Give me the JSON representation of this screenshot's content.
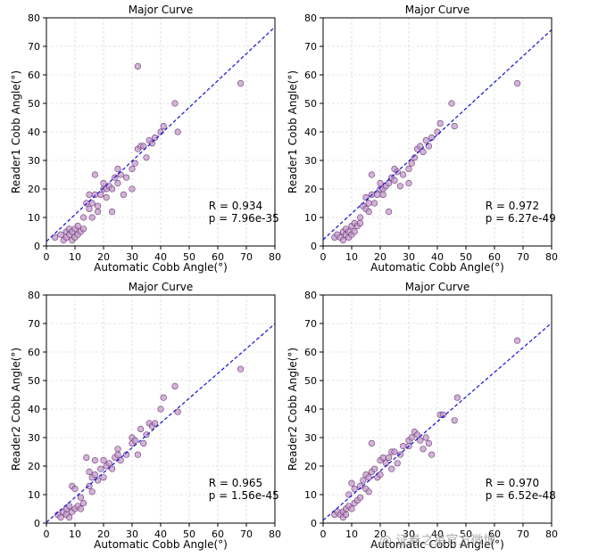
{
  "chart_data": [
    {
      "type": "scatter",
      "title": "Major Curve",
      "xlabel": "Automatic Cobb Angle(°)",
      "ylabel": "Reader1 Cobb Angle(°)",
      "xlim": [
        0,
        80
      ],
      "ylim": [
        0,
        80
      ],
      "xticks": [
        "0",
        "10",
        "20",
        "30",
        "40",
        "50",
        "60",
        "70",
        "80"
      ],
      "yticks": [
        "0",
        "10",
        "20",
        "30",
        "40",
        "50",
        "60",
        "70",
        "80"
      ],
      "grid": true,
      "stat_r": "R = 0.934",
      "stat_p": "p = 7.96e-35",
      "fit": {
        "slope": 0.94,
        "intercept": 1.6
      },
      "points": [
        [
          3,
          3
        ],
        [
          5,
          4
        ],
        [
          6,
          2
        ],
        [
          7,
          5
        ],
        [
          7,
          3
        ],
        [
          8,
          4
        ],
        [
          8,
          6
        ],
        [
          9,
          2
        ],
        [
          9,
          5
        ],
        [
          10,
          3
        ],
        [
          10,
          6
        ],
        [
          11,
          4
        ],
        [
          11,
          7
        ],
        [
          12,
          5
        ],
        [
          13,
          10
        ],
        [
          13,
          6
        ],
        [
          14,
          15
        ],
        [
          15,
          18
        ],
        [
          15,
          13
        ],
        [
          16,
          15
        ],
        [
          16,
          10
        ],
        [
          17,
          18
        ],
        [
          17,
          25
        ],
        [
          18,
          14
        ],
        [
          18,
          12
        ],
        [
          19,
          18
        ],
        [
          20,
          20
        ],
        [
          20,
          22
        ],
        [
          21,
          20
        ],
        [
          21,
          17
        ],
        [
          22,
          21
        ],
        [
          23,
          20
        ],
        [
          23,
          12
        ],
        [
          24,
          24
        ],
        [
          25,
          22
        ],
        [
          25,
          27
        ],
        [
          26,
          25
        ],
        [
          27,
          18
        ],
        [
          28,
          24
        ],
        [
          30,
          20
        ],
        [
          30,
          27
        ],
        [
          31,
          29
        ],
        [
          32,
          34
        ],
        [
          32,
          63
        ],
        [
          33,
          35
        ],
        [
          34,
          35
        ],
        [
          35,
          31
        ],
        [
          36,
          37
        ],
        [
          37,
          36
        ],
        [
          38,
          38
        ],
        [
          40,
          40
        ],
        [
          41,
          42
        ],
        [
          45,
          50
        ],
        [
          46,
          40
        ],
        [
          68,
          57
        ]
      ]
    },
    {
      "type": "scatter",
      "title": "Major Curve",
      "xlabel": "Automatic Cobb Angle(°)",
      "ylabel": "Reader1 Cobb Angle(°)",
      "xlim": [
        0,
        80
      ],
      "ylim": [
        0,
        80
      ],
      "xticks": [
        "0",
        "10",
        "20",
        "30",
        "40",
        "50",
        "60",
        "70",
        "80"
      ],
      "yticks": [
        "0",
        "10",
        "20",
        "30",
        "40",
        "50",
        "60",
        "70",
        "80"
      ],
      "grid": true,
      "stat_r": "R = 0.972",
      "stat_p": "p = 6.27e-49",
      "fit": {
        "slope": 0.92,
        "intercept": 2.2
      },
      "points": [
        [
          4,
          3
        ],
        [
          5,
          4
        ],
        [
          6,
          3
        ],
        [
          7,
          5
        ],
        [
          7,
          2
        ],
        [
          8,
          4
        ],
        [
          8,
          6
        ],
        [
          9,
          3
        ],
        [
          9,
          5
        ],
        [
          10,
          4
        ],
        [
          10,
          7
        ],
        [
          11,
          5
        ],
        [
          11,
          8
        ],
        [
          12,
          7
        ],
        [
          13,
          10
        ],
        [
          13,
          8
        ],
        [
          14,
          14
        ],
        [
          15,
          17
        ],
        [
          15,
          13
        ],
        [
          16,
          15
        ],
        [
          16,
          12
        ],
        [
          17,
          18
        ],
        [
          17,
          25
        ],
        [
          18,
          15
        ],
        [
          19,
          18
        ],
        [
          20,
          20
        ],
        [
          20,
          22
        ],
        [
          21,
          20
        ],
        [
          21,
          18
        ],
        [
          22,
          21
        ],
        [
          23,
          22
        ],
        [
          23,
          12
        ],
        [
          24,
          24
        ],
        [
          25,
          23
        ],
        [
          25,
          27
        ],
        [
          26,
          26
        ],
        [
          27,
          21
        ],
        [
          28,
          25
        ],
        [
          30,
          22
        ],
        [
          30,
          27
        ],
        [
          31,
          29
        ],
        [
          32,
          31
        ],
        [
          33,
          34
        ],
        [
          34,
          35
        ],
        [
          35,
          33
        ],
        [
          36,
          37
        ],
        [
          37,
          35
        ],
        [
          38,
          38
        ],
        [
          40,
          40
        ],
        [
          41,
          43
        ],
        [
          45,
          50
        ],
        [
          46,
          42
        ],
        [
          68,
          57
        ]
      ]
    },
    {
      "type": "scatter",
      "title": "Major Curve",
      "xlabel": "Automatic Cobb Angle(°)",
      "ylabel": "Reader2 Cobb Angle(°)",
      "xlim": [
        0,
        80
      ],
      "ylim": [
        0,
        80
      ],
      "xticks": [
        "0",
        "10",
        "20",
        "30",
        "40",
        "50",
        "60",
        "70",
        "80"
      ],
      "yticks": [
        "0",
        "10",
        "20",
        "30",
        "40",
        "50",
        "60",
        "70",
        "80"
      ],
      "grid": true,
      "stat_r": "R = 0.965",
      "stat_p": "p = 1.56e-45",
      "fit": {
        "slope": 0.87,
        "intercept": 0.3
      },
      "points": [
        [
          4,
          3
        ],
        [
          5,
          2
        ],
        [
          6,
          4
        ],
        [
          7,
          3
        ],
        [
          7,
          5
        ],
        [
          8,
          2
        ],
        [
          8,
          6
        ],
        [
          9,
          4
        ],
        [
          9,
          13
        ],
        [
          10,
          5
        ],
        [
          10,
          12
        ],
        [
          11,
          6
        ],
        [
          12,
          5
        ],
        [
          12,
          9
        ],
        [
          13,
          7
        ],
        [
          14,
          23
        ],
        [
          15,
          18
        ],
        [
          15,
          13
        ],
        [
          16,
          16
        ],
        [
          16,
          11
        ],
        [
          17,
          17
        ],
        [
          17,
          22
        ],
        [
          18,
          15
        ],
        [
          19,
          19
        ],
        [
          20,
          16
        ],
        [
          20,
          22
        ],
        [
          21,
          20
        ],
        [
          22,
          21
        ],
        [
          23,
          19
        ],
        [
          24,
          23
        ],
        [
          25,
          24
        ],
        [
          25,
          26
        ],
        [
          26,
          22
        ],
        [
          28,
          24
        ],
        [
          30,
          28
        ],
        [
          30,
          30
        ],
        [
          31,
          29
        ],
        [
          32,
          24
        ],
        [
          33,
          33
        ],
        [
          34,
          28
        ],
        [
          35,
          31
        ],
        [
          36,
          35
        ],
        [
          37,
          34
        ],
        [
          38,
          35
        ],
        [
          40,
          40
        ],
        [
          41,
          44
        ],
        [
          45,
          48
        ],
        [
          46,
          39
        ],
        [
          68,
          54
        ]
      ]
    },
    {
      "type": "scatter",
      "title": "Major Curve",
      "xlabel": "Automatic Cobb Angle(°)",
      "ylabel": "Reader2 Cobb Angle(°)",
      "xlim": [
        0,
        80
      ],
      "ylim": [
        0,
        80
      ],
      "xticks": [
        "0",
        "10",
        "20",
        "30",
        "40",
        "50",
        "60",
        "70",
        "80"
      ],
      "yticks": [
        "0",
        "10",
        "20",
        "30",
        "40",
        "50",
        "60",
        "70",
        "80"
      ],
      "grid": true,
      "stat_r": "R = 0.970",
      "stat_p": "p = 6.52e-48",
      "fit": {
        "slope": 0.865,
        "intercept": 1.0
      },
      "points": [
        [
          4,
          3
        ],
        [
          5,
          4
        ],
        [
          6,
          3
        ],
        [
          7,
          4
        ],
        [
          7,
          2
        ],
        [
          8,
          5
        ],
        [
          8,
          3
        ],
        [
          9,
          6
        ],
        [
          9,
          10
        ],
        [
          10,
          5
        ],
        [
          10,
          14
        ],
        [
          11,
          7
        ],
        [
          11,
          12
        ],
        [
          12,
          8
        ],
        [
          13,
          13
        ],
        [
          13,
          9
        ],
        [
          14,
          15
        ],
        [
          15,
          17
        ],
        [
          15,
          12
        ],
        [
          16,
          16
        ],
        [
          16,
          11
        ],
        [
          17,
          18
        ],
        [
          17,
          28
        ],
        [
          18,
          19
        ],
        [
          19,
          16
        ],
        [
          20,
          22
        ],
        [
          20,
          17
        ],
        [
          21,
          23
        ],
        [
          22,
          21
        ],
        [
          23,
          23
        ],
        [
          24,
          19
        ],
        [
          24,
          25
        ],
        [
          25,
          25
        ],
        [
          26,
          21
        ],
        [
          27,
          24
        ],
        [
          28,
          27
        ],
        [
          30,
          27
        ],
        [
          30,
          29
        ],
        [
          31,
          30
        ],
        [
          32,
          32
        ],
        [
          33,
          31
        ],
        [
          34,
          29
        ],
        [
          35,
          26
        ],
        [
          36,
          30
        ],
        [
          37,
          28
        ],
        [
          38,
          24
        ],
        [
          41,
          38
        ],
        [
          42,
          38
        ],
        [
          46,
          36
        ],
        [
          47,
          44
        ],
        [
          68,
          64
        ]
      ]
    }
  ],
  "watermark": "@ 证券之星官方微博"
}
